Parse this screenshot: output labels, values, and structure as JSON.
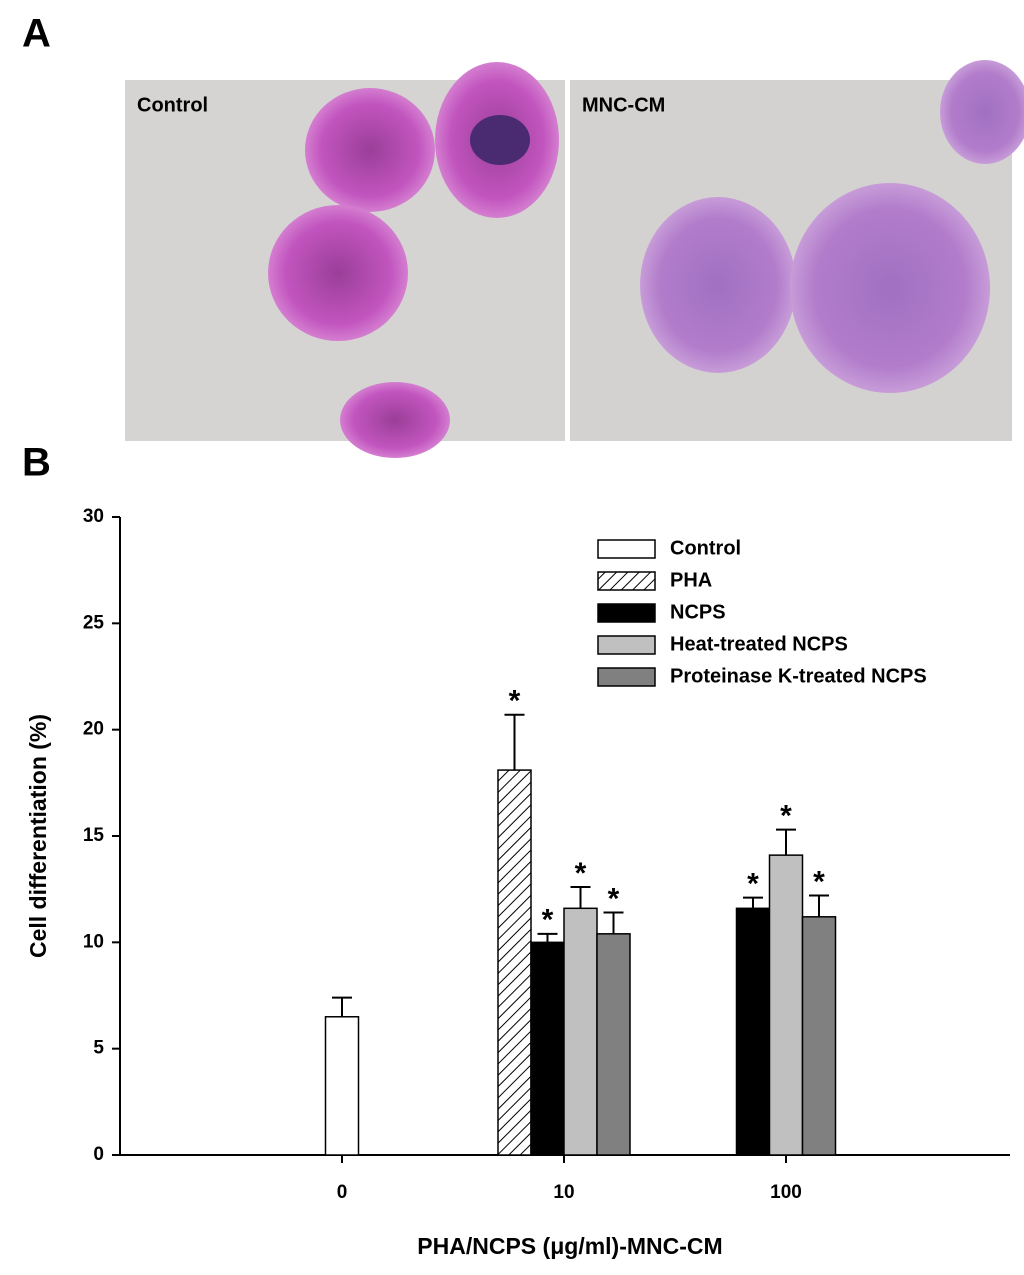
{
  "panel_a": {
    "label": "A",
    "images": [
      {
        "label": "Control"
      },
      {
        "label": "MNC-CM"
      }
    ]
  },
  "panel_b": {
    "label": "B"
  },
  "chart_data": {
    "type": "bar",
    "x_label": "PHA/NCPS (μg/ml)-MNC-CM",
    "y_label": "Cell differentiation (%)",
    "categories": [
      "0",
      "10",
      "100"
    ],
    "series": [
      {
        "name": "Control",
        "color": "#ffffff",
        "values": [
          6.5,
          null,
          null
        ],
        "errors": [
          0.9,
          null,
          null
        ],
        "significance": [
          null,
          null,
          null
        ]
      },
      {
        "name": "PHA",
        "color": "#ffffff",
        "pattern": "hatch",
        "values": [
          null,
          18.1,
          null
        ],
        "errors": [
          null,
          2.6,
          null
        ],
        "significance": [
          null,
          "*",
          null
        ]
      },
      {
        "name": "NCPS",
        "color": "#000000",
        "values": [
          null,
          10.0,
          11.6
        ],
        "errors": [
          null,
          0.4,
          0.5
        ],
        "significance": [
          null,
          "*",
          "*"
        ]
      },
      {
        "name": "Heat-treated NCPS",
        "color": "#c0c0c0",
        "values": [
          null,
          11.6,
          14.1
        ],
        "errors": [
          null,
          1.0,
          1.2
        ],
        "significance": [
          null,
          "*",
          "*"
        ]
      },
      {
        "name": "Proteinase K-treated NCPS",
        "color": "#808080",
        "values": [
          null,
          10.4,
          11.2
        ],
        "errors": [
          null,
          1.0,
          1.0
        ],
        "significance": [
          null,
          "*",
          "*"
        ]
      }
    ],
    "ylim": [
      0,
      30
    ],
    "yticks": [
      0,
      5,
      10,
      15,
      20,
      25,
      30
    ],
    "grid": false,
    "legend": "top-right"
  }
}
